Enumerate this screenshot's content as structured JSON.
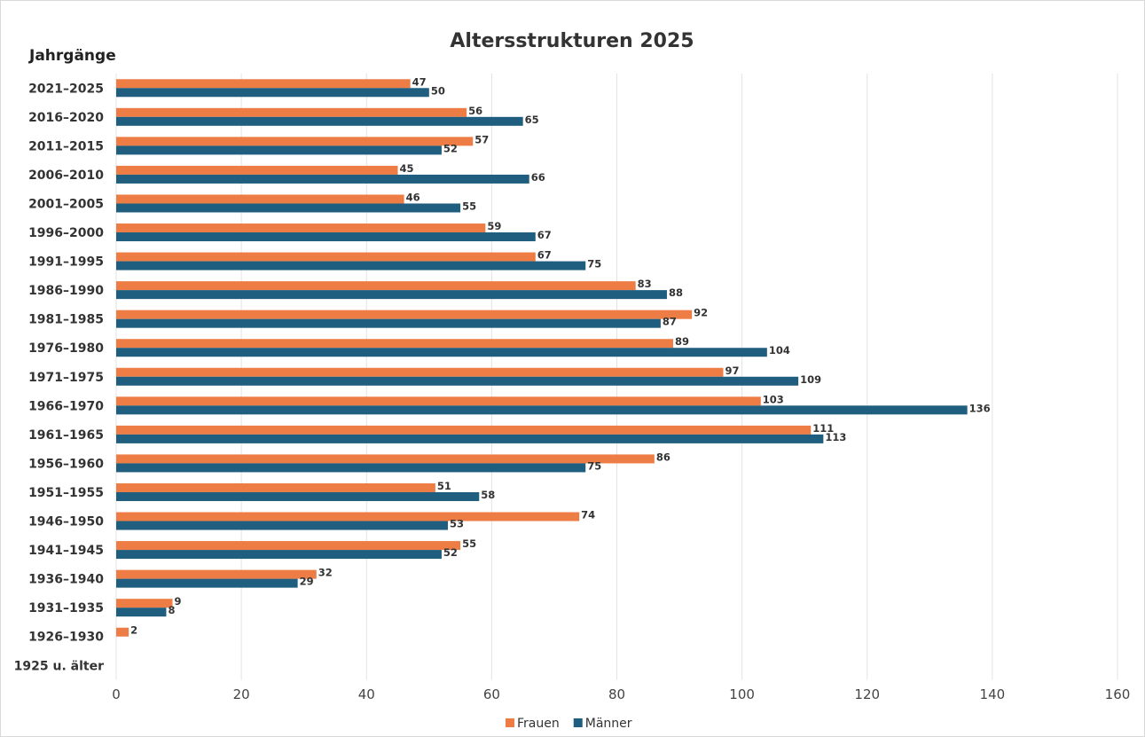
{
  "chart_data": {
    "type": "bar",
    "orientation": "horizontal",
    "title": "Altersstrukturen 2025",
    "ylabel": "Jahrgänge",
    "xlabel": "",
    "xlim": [
      0,
      160
    ],
    "xticks": [
      0,
      20,
      40,
      60,
      80,
      100,
      120,
      140,
      160
    ],
    "grid": true,
    "legend_position": "bottom",
    "categories": [
      "2021–2025",
      "2016–2020",
      "2011–2015",
      "2006–2010",
      "2001–2005",
      "1996–2000",
      "1991–1995",
      "1986–1990",
      "1981–1985",
      "1976–1980",
      "1971–1975",
      "1966–1970",
      "1961–1965",
      "1956–1960",
      "1951–1955",
      "1946–1950",
      "1941–1945",
      "1936–1940",
      "1931–1935",
      "1926–1930",
      "1925 u. älter"
    ],
    "series": [
      {
        "name": "Frauen",
        "color": "#ed7d45",
        "values": [
          47,
          56,
          57,
          45,
          46,
          59,
          67,
          83,
          92,
          89,
          97,
          103,
          111,
          86,
          51,
          74,
          55,
          32,
          9,
          2,
          null
        ]
      },
      {
        "name": "Männer",
        "color": "#1f5e7e",
        "values": [
          50,
          65,
          52,
          66,
          55,
          67,
          75,
          88,
          87,
          104,
          109,
          136,
          113,
          75,
          58,
          53,
          52,
          29,
          8,
          null,
          null
        ]
      }
    ]
  }
}
